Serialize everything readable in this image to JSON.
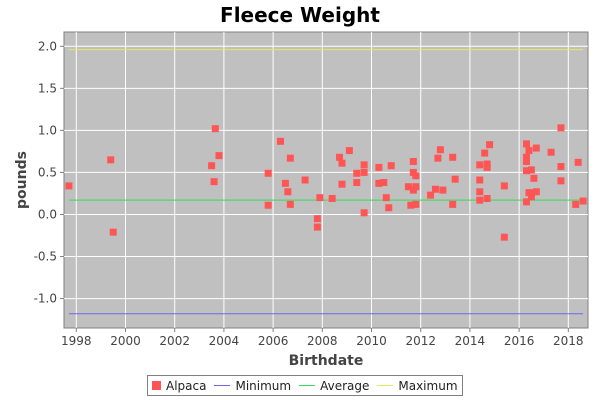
{
  "chart_data": {
    "type": "scatter",
    "title": "Fleece Weight",
    "xlabel": "Birthdate",
    "ylabel": "pounds",
    "xlim": [
      1997.5,
      2018.8
    ],
    "ylim": [
      -1.35,
      2.17
    ],
    "x_ticks": [
      "1998",
      "2000",
      "2002",
      "2004",
      "2006",
      "2008",
      "2010",
      "2012",
      "2014",
      "2016",
      "2018"
    ],
    "y_ticks": [
      "2.0",
      "1.5",
      "1.0",
      "0.5",
      "0.0",
      "-0.5",
      "-1.0"
    ],
    "grid": true,
    "legend_position": "bottom",
    "plot_background": "#c0c0c0",
    "series": [
      {
        "name": "Alpaca",
        "kind": "scatter",
        "color": "#ff5555",
        "points": [
          [
            1997.7,
            0.34
          ],
          [
            1999.4,
            0.65
          ],
          [
            1999.5,
            -0.21
          ],
          [
            2003.5,
            0.58
          ],
          [
            2003.6,
            0.39
          ],
          [
            2003.65,
            1.02
          ],
          [
            2003.8,
            0.7
          ],
          [
            2005.8,
            0.49
          ],
          [
            2005.8,
            0.11
          ],
          [
            2006.3,
            0.87
          ],
          [
            2006.5,
            0.37
          ],
          [
            2006.6,
            0.27
          ],
          [
            2006.7,
            0.12
          ],
          [
            2006.7,
            0.67
          ],
          [
            2007.3,
            0.41
          ],
          [
            2007.8,
            -0.05
          ],
          [
            2007.8,
            -0.15
          ],
          [
            2007.9,
            0.2
          ],
          [
            2008.4,
            0.19
          ],
          [
            2008.7,
            0.68
          ],
          [
            2008.8,
            0.61
          ],
          [
            2008.8,
            0.36
          ],
          [
            2009.1,
            0.76
          ],
          [
            2009.4,
            0.49
          ],
          [
            2009.4,
            0.38
          ],
          [
            2009.7,
            0.59
          ],
          [
            2009.7,
            0.5
          ],
          [
            2009.7,
            0.02
          ],
          [
            2010.3,
            0.56
          ],
          [
            2010.3,
            0.37
          ],
          [
            2010.5,
            0.38
          ],
          [
            2010.6,
            0.2
          ],
          [
            2010.7,
            0.08
          ],
          [
            2010.8,
            0.58
          ],
          [
            2011.5,
            0.33
          ],
          [
            2011.6,
            0.11
          ],
          [
            2011.7,
            0.29
          ],
          [
            2011.7,
            0.63
          ],
          [
            2011.7,
            0.5
          ],
          [
            2011.8,
            0.46
          ],
          [
            2011.8,
            0.33
          ],
          [
            2011.8,
            0.12
          ],
          [
            2012.4,
            0.23
          ],
          [
            2012.6,
            0.3
          ],
          [
            2012.7,
            0.67
          ],
          [
            2012.8,
            0.77
          ],
          [
            2012.9,
            0.29
          ],
          [
            2013.3,
            0.68
          ],
          [
            2013.4,
            0.42
          ],
          [
            2013.3,
            0.12
          ],
          [
            2014.4,
            0.59
          ],
          [
            2014.4,
            0.41
          ],
          [
            2014.4,
            0.27
          ],
          [
            2014.4,
            0.17
          ],
          [
            2014.6,
            0.73
          ],
          [
            2014.7,
            0.6
          ],
          [
            2014.7,
            0.56
          ],
          [
            2014.7,
            0.19
          ],
          [
            2014.8,
            0.83
          ],
          [
            2015.4,
            0.34
          ],
          [
            2015.4,
            -0.27
          ],
          [
            2016.3,
            0.84
          ],
          [
            2016.3,
            0.68
          ],
          [
            2016.3,
            0.63
          ],
          [
            2016.4,
            0.76
          ],
          [
            2016.3,
            0.52
          ],
          [
            2016.5,
            0.53
          ],
          [
            2016.4,
            0.26
          ],
          [
            2016.3,
            0.15
          ],
          [
            2016.5,
            0.25
          ],
          [
            2016.5,
            0.21
          ],
          [
            2016.6,
            0.43
          ],
          [
            2016.7,
            0.79
          ],
          [
            2016.7,
            0.27
          ],
          [
            2017.3,
            0.74
          ],
          [
            2017.7,
            1.03
          ],
          [
            2017.7,
            0.57
          ],
          [
            2017.7,
            0.4
          ],
          [
            2018.3,
            0.12
          ],
          [
            2018.4,
            0.62
          ],
          [
            2018.6,
            0.16
          ]
        ]
      },
      {
        "name": "Minimum",
        "kind": "hline",
        "color": "#6a6ae6",
        "value": -1.18
      },
      {
        "name": "Average",
        "kind": "hline",
        "color": "#33dd55",
        "value": 0.17
      },
      {
        "name": "Maximum",
        "kind": "hline",
        "color": "#e8e85a",
        "value": 1.96
      }
    ]
  }
}
